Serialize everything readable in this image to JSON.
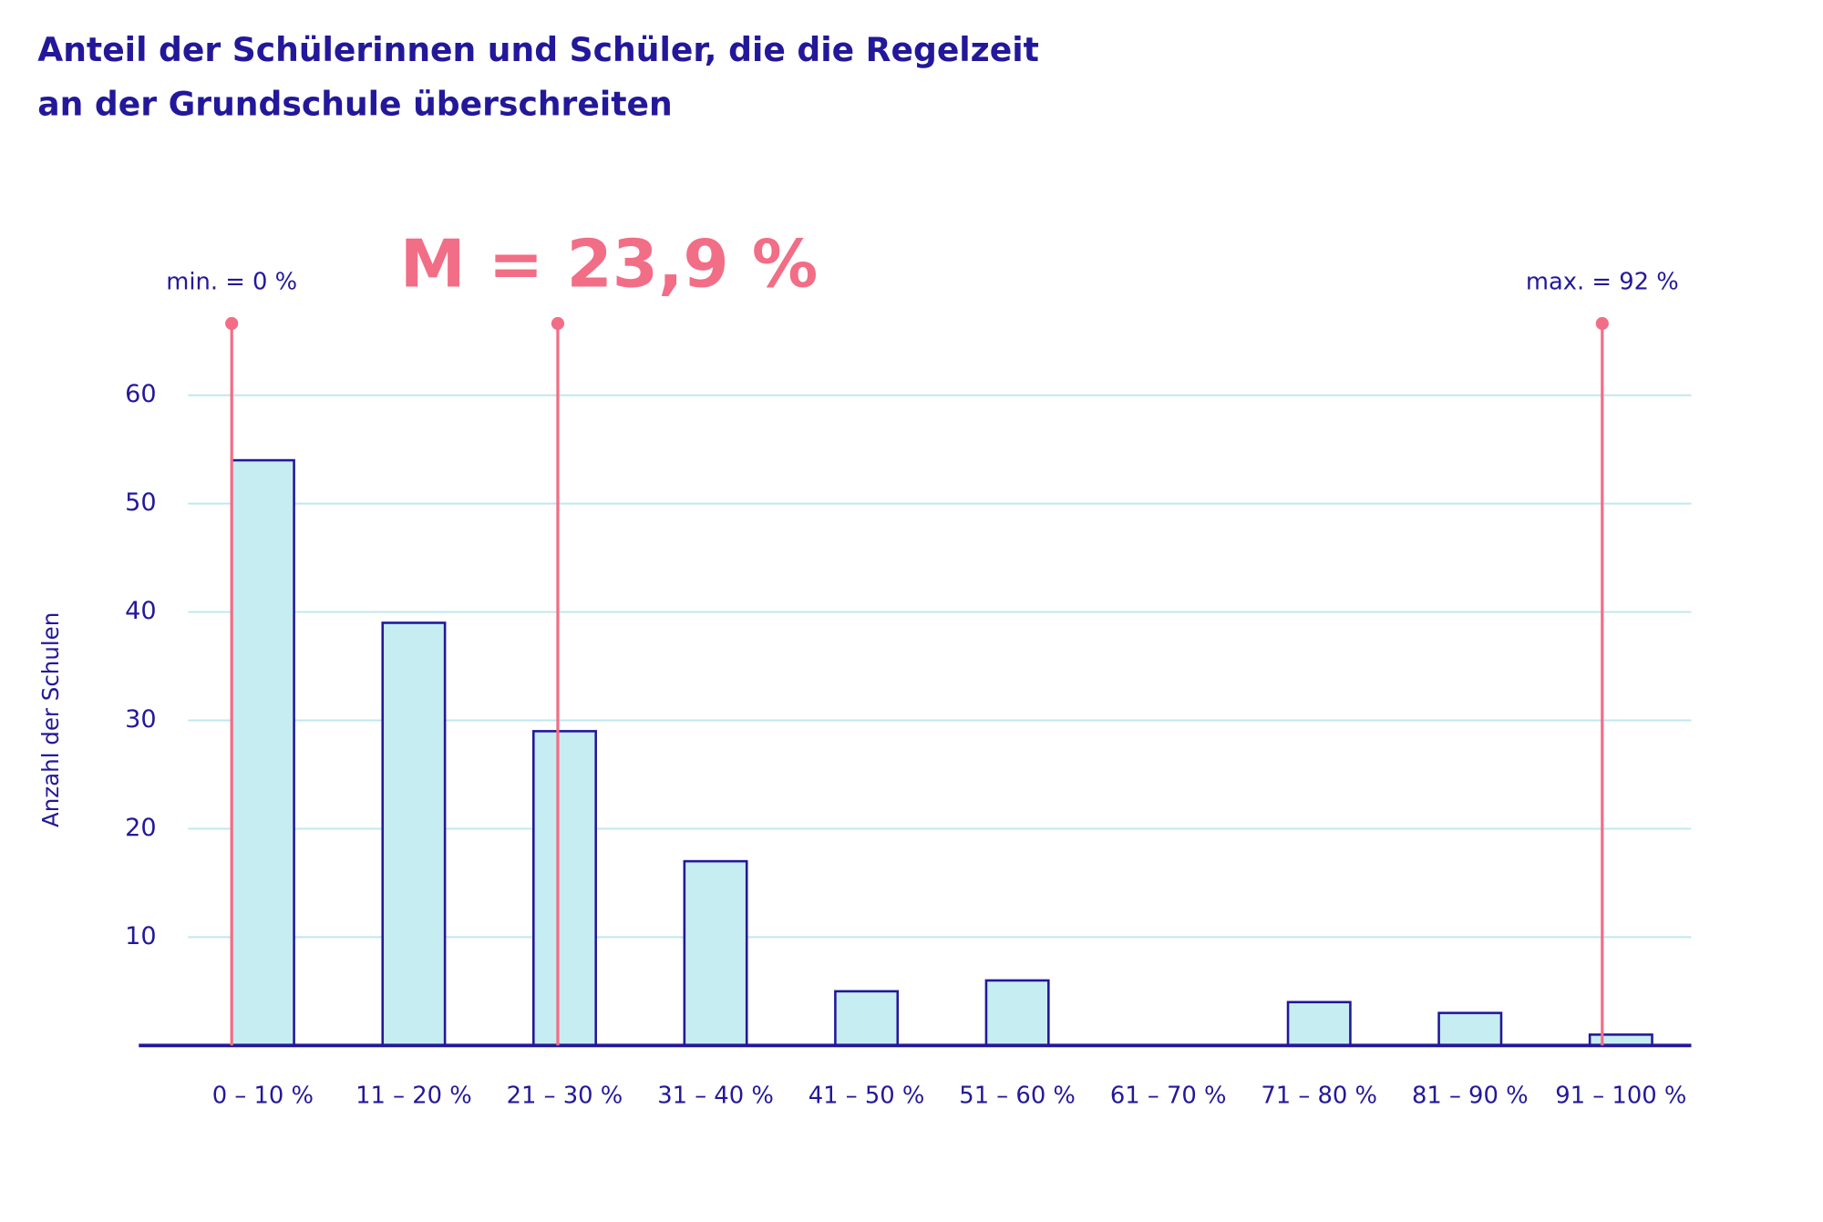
{
  "chart_data": {
    "type": "bar",
    "title": "Anteil der Schülerinnen und Schüler, die die Regelzeit",
    "subtitle": "an der Grundschule überschreiten",
    "y_label": "Anzahl der Schulen",
    "categories": [
      "0 – 10 %",
      "11 – 20 %",
      "21 – 30 %",
      "31 – 40 %",
      "41 – 50 %",
      "51 – 60 %",
      "61 – 70 %",
      "71 – 80 %",
      "81 – 90 %",
      "91 – 100 %"
    ],
    "values": [
      54,
      39,
      29,
      17,
      5,
      6,
      0,
      4,
      3,
      1
    ],
    "color": "#c6edf1",
    "edge_color": "#23189a",
    "ylim": [
      0,
      60
    ],
    "yticks": [
      10,
      20,
      30,
      40,
      50,
      60
    ],
    "grid": true,
    "annotations": [
      {
        "label": "min. = 0 %",
        "value": 0
      },
      {
        "label": "M = 23,9 %",
        "value": 23.9
      },
      {
        "label": "max. = 92 %",
        "value": 92
      }
    ],
    "annotation_color": "#f26d86"
  }
}
